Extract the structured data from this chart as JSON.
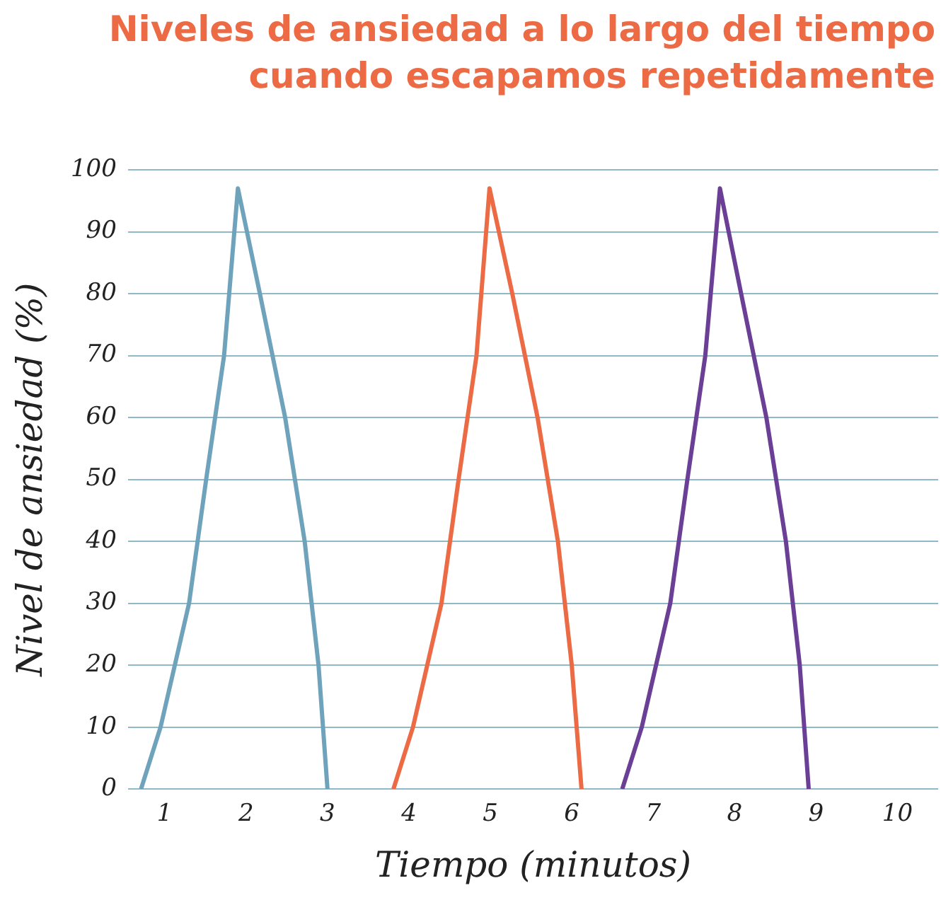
{
  "chart_data": {
    "type": "line",
    "title": "Niveles de ansiedad a lo largo del tiempo\ncuando escapamos repetidamente",
    "xlabel": "Tiempo (minutos)",
    "ylabel": "Nivel de ansiedad (%)",
    "series": [
      {
        "color": "#6fa3bb",
        "x": [
          0.71,
          0.95,
          1.3,
          1.51,
          1.73,
          1.9,
          2.17,
          2.48,
          2.72,
          2.89,
          3.0
        ],
        "values": [
          0,
          10,
          30,
          50,
          70,
          97,
          80,
          60,
          40,
          20,
          0
        ]
      },
      {
        "color": "#ec6b45",
        "x": [
          3.81,
          4.05,
          4.4,
          4.61,
          4.83,
          4.99,
          5.27,
          5.58,
          5.83,
          6.0,
          6.12
        ],
        "values": [
          0,
          10,
          30,
          50,
          70,
          97,
          80,
          60,
          40,
          20,
          0
        ]
      },
      {
        "color": "#6a3f95",
        "x": [
          6.62,
          6.86,
          7.21,
          7.42,
          7.64,
          7.82,
          8.08,
          8.39,
          8.63,
          8.8,
          8.91
        ],
        "values": [
          0,
          10,
          30,
          50,
          70,
          97,
          80,
          60,
          40,
          20,
          0
        ]
      }
    ],
    "xlim": [
      0.55,
      10.5
    ],
    "xticks": [
      1,
      2,
      3,
      4,
      5,
      6,
      7,
      8,
      9,
      10
    ],
    "ylim": [
      0,
      100
    ],
    "yticks": [
      0,
      10,
      20,
      30,
      40,
      50,
      60,
      70,
      80,
      90,
      100
    ],
    "grid": "y",
    "legend": false,
    "marker": "none",
    "line_style": "solid"
  }
}
